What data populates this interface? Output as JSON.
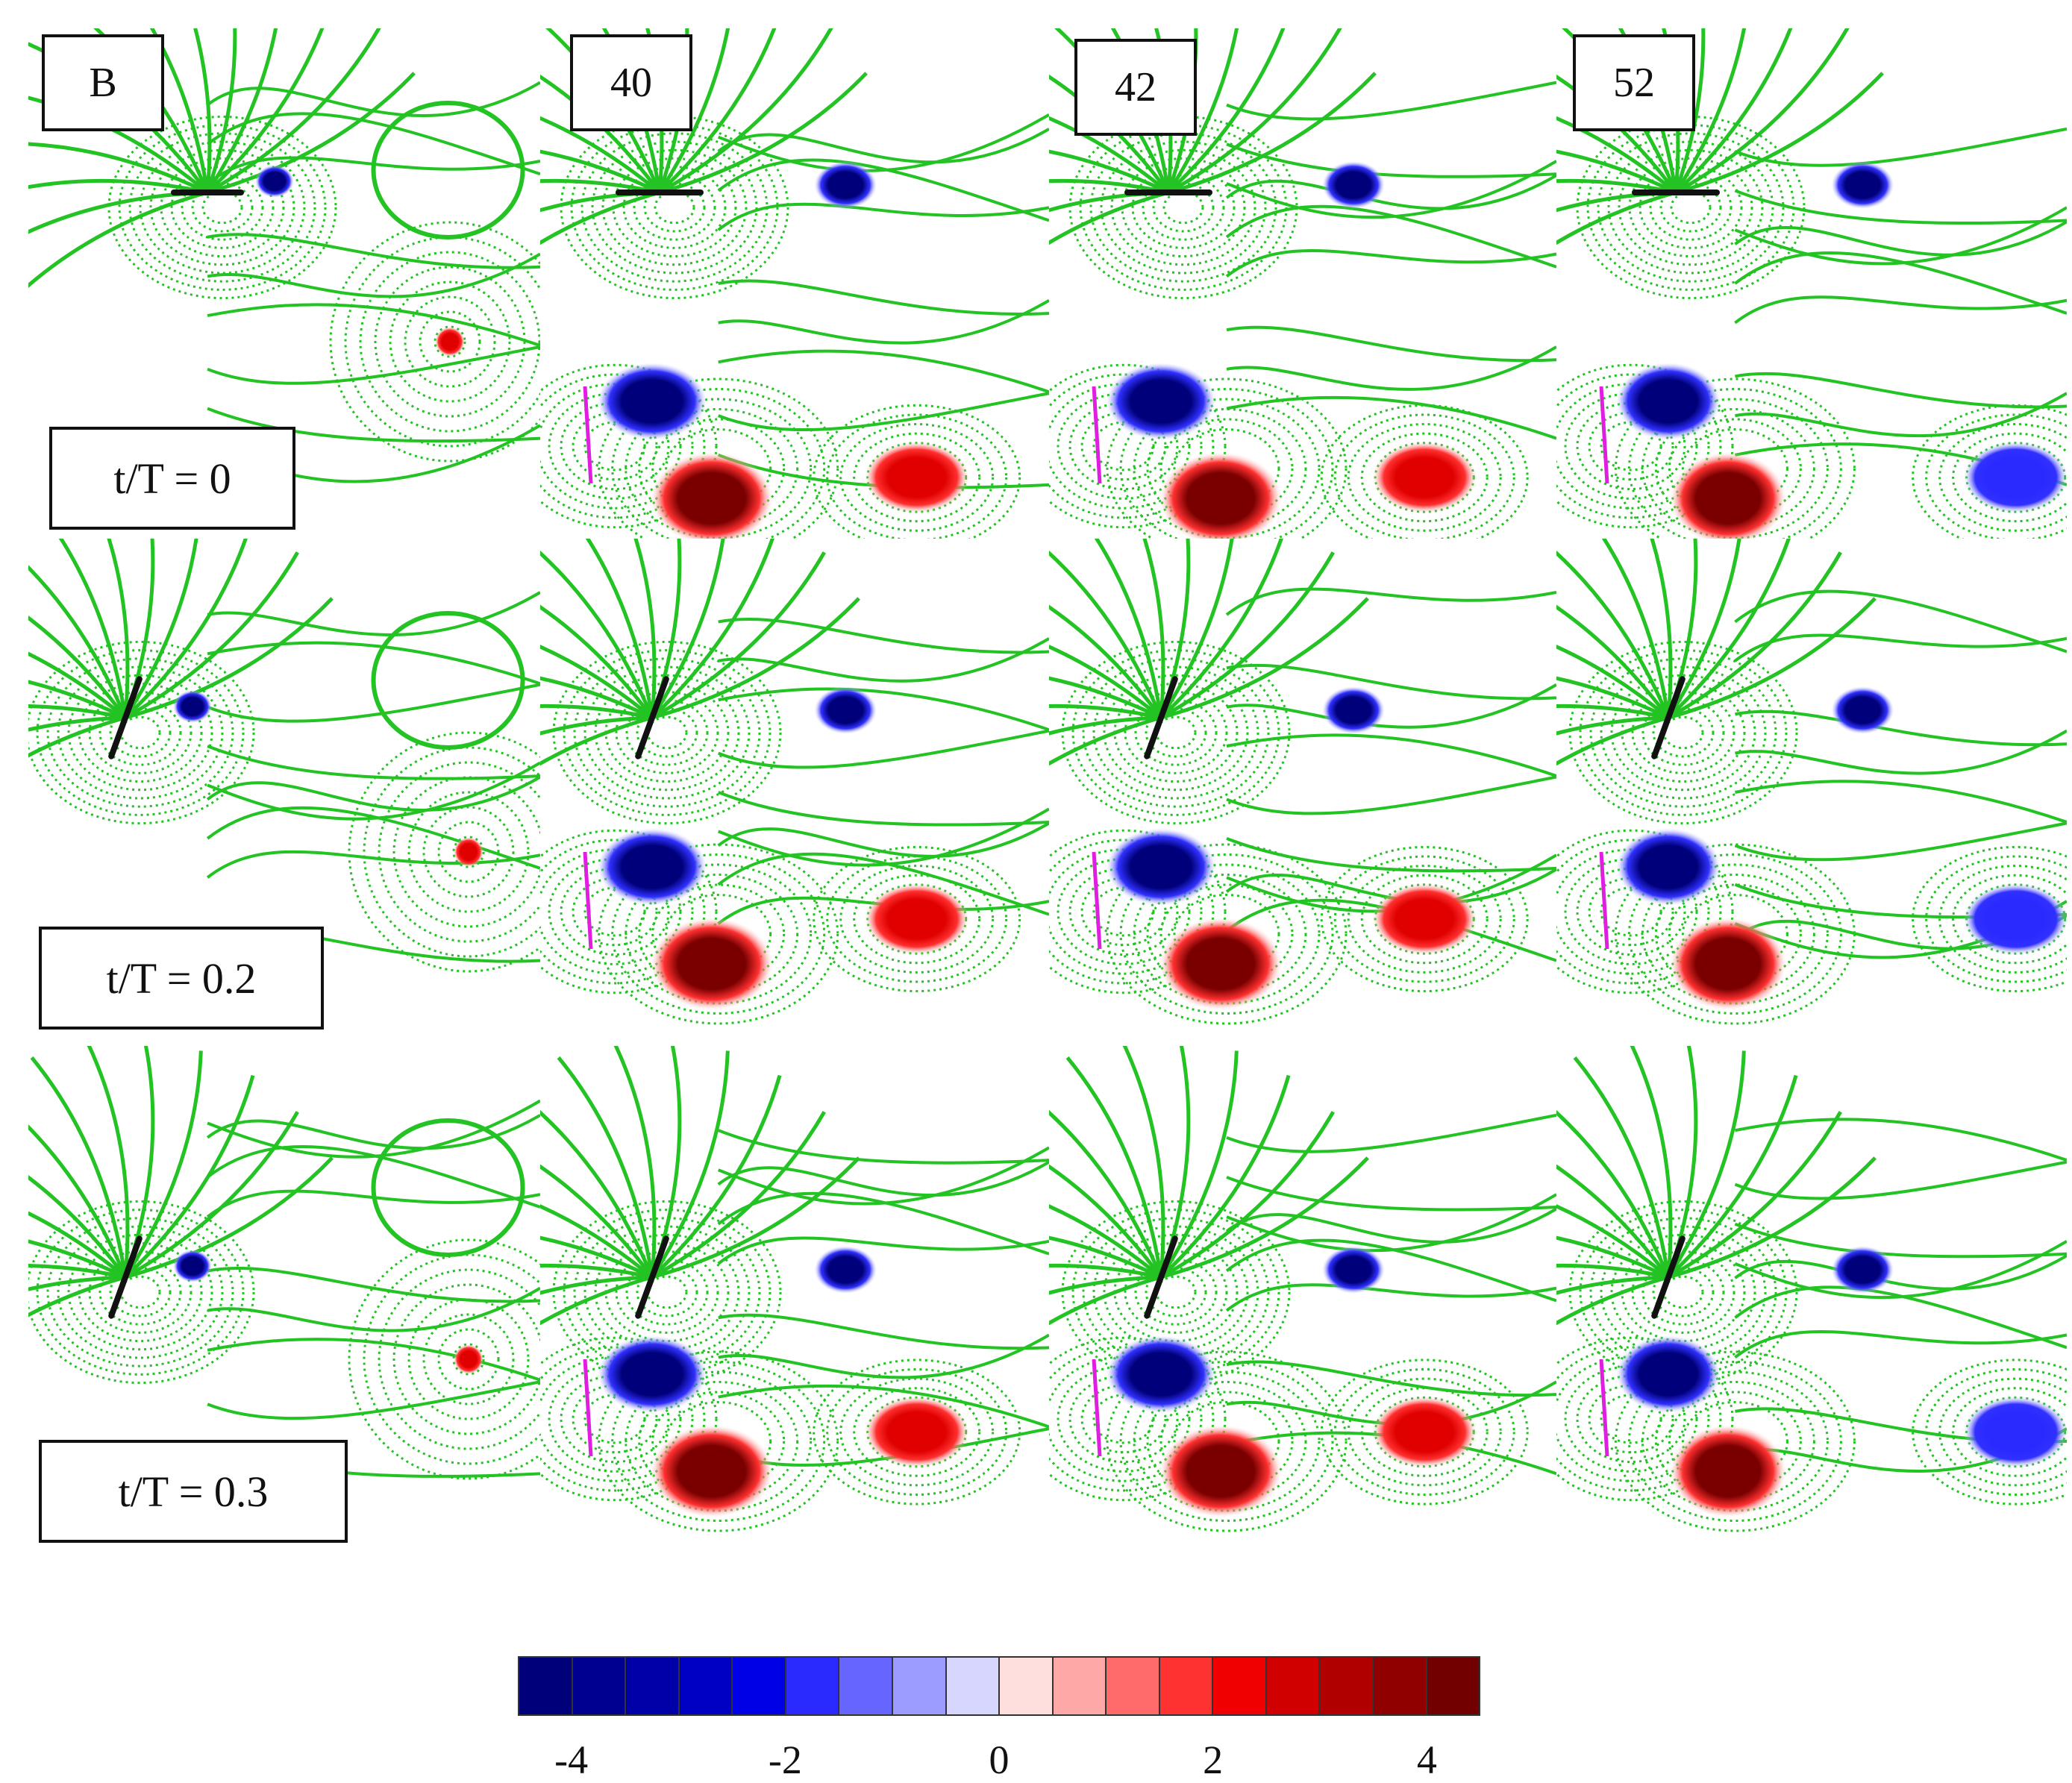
{
  "column_labels": [
    "B",
    "40",
    "42",
    "52"
  ],
  "row_labels": [
    "t/T = 0",
    "t/T = 0.2",
    "t/T = 0.3"
  ],
  "colorbar": {
    "colors": [
      "#00007a",
      "#000090",
      "#0000a8",
      "#0000c4",
      "#0000e6",
      "#2a2aff",
      "#6666ff",
      "#9c9cff",
      "#d6d6ff",
      "#ffdede",
      "#ffa8a8",
      "#ff6a6a",
      "#ff3232",
      "#f00000",
      "#d00000",
      "#b00000",
      "#900000",
      "#720000"
    ],
    "ticks": [
      "-4",
      "-2",
      "0",
      "2",
      "4"
    ],
    "tick_values": [
      -4,
      -2,
      0,
      2,
      4
    ],
    "range": [
      -4.5,
      4.5
    ]
  },
  "colors": {
    "streamline": "#22c322",
    "negative_vortex": "#00008f",
    "positive_vortex": "#a00000",
    "plate": "#e01ee0",
    "airfoil": "#111111"
  }
}
